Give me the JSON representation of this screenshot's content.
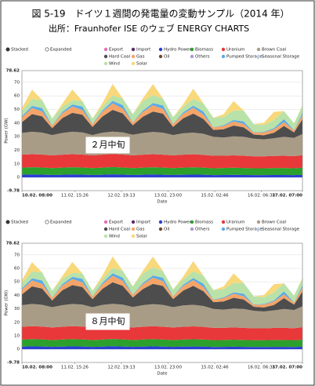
{
  "title": "図 5-19　ドイツ１週間の発電量の変動サンプル（2014 年）",
  "source": "出所：Fraunhofer ISE のウェブ ENERGY CHARTS",
  "chart_data": [
    {
      "type": "area",
      "stacked": true,
      "modes": [
        "Stacked",
        "Expanded"
      ],
      "annotation": "２月中旬",
      "xlabel": "Date",
      "ylabel": "Power (GW)",
      "x": [
        0,
        6,
        12,
        18,
        24,
        30,
        36,
        42,
        48,
        54,
        60,
        66,
        72,
        78,
        84,
        90,
        96,
        102,
        108,
        114,
        120,
        126,
        132,
        138,
        144,
        150,
        156,
        162,
        167
      ],
      "xlim": [
        0,
        167
      ],
      "xticks": [
        {
          "value": 0,
          "label": "10.02. 08:00"
        },
        {
          "value": 31.43,
          "label": "11.02. 15:26"
        },
        {
          "value": 59.22,
          "label": "12.02. 19:13"
        },
        {
          "value": 87,
          "label": "13.02. 23:00"
        },
        {
          "value": 114.77,
          "label": "15.02. 02:46"
        },
        {
          "value": 142.55,
          "label": "16.02. 06:33"
        },
        {
          "value": 167,
          "label": "17.02. 07:00"
        }
      ],
      "ylim": [
        -9.78,
        78.62
      ],
      "yticks": [
        -9.78,
        0,
        10,
        20,
        30,
        40,
        50,
        60,
        70,
        78.62
      ],
      "series": [
        {
          "name": "Export",
          "color": "#e36fb4",
          "values": [
            0,
            0,
            0,
            0,
            0,
            0,
            0,
            0,
            0,
            0,
            0,
            0,
            0,
            0,
            0,
            0,
            0,
            0,
            0,
            0,
            0,
            0,
            0,
            0,
            0,
            0,
            0,
            0,
            0
          ]
        },
        {
          "name": "Import",
          "color": "#5a2a6a",
          "values": [
            0,
            0,
            0,
            0,
            0,
            0,
            0,
            0,
            0,
            0,
            0,
            0,
            0,
            0,
            0,
            0,
            0,
            0,
            0,
            0,
            0,
            0,
            0,
            0,
            0,
            0,
            0,
            0,
            0
          ]
        },
        {
          "name": "Hydro Power",
          "color": "#2a3fd0",
          "values": [
            2,
            2.2,
            2.1,
            1.8,
            2,
            2.2,
            2.1,
            1.8,
            2,
            2.3,
            2.1,
            1.8,
            2,
            2.2,
            2,
            1.8,
            2,
            2.1,
            2,
            1.7,
            1.8,
            1.9,
            1.8,
            1.7,
            1.7,
            1.8,
            1.8,
            1.7,
            1.9
          ]
        },
        {
          "name": "Biomass",
          "color": "#2ca02c",
          "values": [
            5.2,
            5.3,
            5.2,
            5,
            5.2,
            5.3,
            5.2,
            5,
            5.2,
            5.3,
            5.2,
            5,
            5.2,
            5.3,
            5.2,
            5,
            5.2,
            5.3,
            5.2,
            5,
            5.1,
            5.2,
            5.1,
            5,
            5,
            5.1,
            5.1,
            5,
            5.2
          ]
        },
        {
          "name": "Uranium",
          "color": "#e8383a",
          "values": [
            9.5,
            9.6,
            9.5,
            9.4,
            9.5,
            9.6,
            9.5,
            9.4,
            9.5,
            9.6,
            9.5,
            9.4,
            9.5,
            9.6,
            9.5,
            9.4,
            9.5,
            9.6,
            9.4,
            9.2,
            9,
            9.1,
            9,
            8.8,
            8.8,
            8.9,
            9,
            8.9,
            9.3
          ]
        },
        {
          "name": "Brown Coal",
          "color": "#a99c86",
          "values": [
            16,
            16.5,
            16.2,
            15,
            16,
            16.5,
            16.3,
            15,
            16.2,
            16.5,
            16.3,
            15.2,
            16,
            16.4,
            16.2,
            15,
            15.8,
            16,
            15.5,
            14,
            13.5,
            14,
            14,
            13,
            12.5,
            13,
            14,
            13.5,
            15.5
          ]
        },
        {
          "name": "Hard Coal",
          "color": "#4d4d4d",
          "values": [
            8,
            13,
            12,
            5,
            11,
            14,
            13,
            6,
            12,
            16,
            14,
            7,
            12,
            15,
            14,
            6,
            11,
            14,
            11,
            5,
            6,
            8,
            7,
            3,
            3,
            4,
            8,
            4,
            11
          ]
        },
        {
          "name": "Gas",
          "color": "#f5a468",
          "values": [
            3.5,
            4.5,
            3.5,
            2,
            3.5,
            4.5,
            3.5,
            2,
            3.5,
            4.8,
            3.6,
            2,
            3.5,
            4.6,
            3.5,
            2,
            3.4,
            4.3,
            3.2,
            1.8,
            2.5,
            3,
            2.5,
            1.5,
            2.2,
            2.6,
            2.8,
            1.5,
            3.2
          ]
        },
        {
          "name": "Oil",
          "color": "#6b4a2a",
          "values": [
            0,
            0,
            0,
            0,
            0,
            0,
            0,
            0,
            0,
            0,
            0,
            0,
            0,
            0,
            0,
            0,
            0,
            0,
            0,
            0,
            0,
            0,
            0,
            0,
            0,
            0,
            0,
            0,
            0
          ]
        },
        {
          "name": "Others",
          "color": "#b094d4",
          "values": [
            0,
            0,
            0,
            0,
            0,
            0,
            0,
            0,
            0,
            0,
            0,
            0,
            0,
            0,
            0,
            0,
            0,
            0,
            0,
            0,
            0,
            0,
            0,
            0,
            0,
            0,
            0,
            0,
            0
          ]
        },
        {
          "name": "Pumped Storage",
          "color": "#5aaae8",
          "values": [
            1,
            1.5,
            2.5,
            0.2,
            1,
            1.6,
            2.6,
            0.2,
            1,
            1.8,
            2.5,
            0.2,
            1,
            1.6,
            2.6,
            0.2,
            1,
            1.5,
            2.3,
            0.2,
            0.6,
            1,
            1.8,
            0.2,
            0.4,
            0.8,
            2.2,
            0.2,
            1.5
          ]
        },
        {
          "name": "Seasonal Storage",
          "color": "#b8d0f0",
          "values": [
            0,
            0,
            0,
            0,
            0,
            0,
            0,
            0,
            0,
            0,
            0,
            0,
            0,
            0,
            0,
            0,
            0,
            0,
            0,
            0,
            0,
            0,
            0,
            0,
            0,
            0,
            0,
            0,
            0
          ]
        },
        {
          "name": "Wind",
          "color": "#b9e2a9",
          "values": [
            4,
            5,
            6,
            5,
            4,
            3,
            4,
            4,
            3,
            4,
            5,
            6,
            7,
            6,
            5,
            5,
            4,
            5,
            6,
            7,
            6,
            7,
            8,
            6,
            5,
            6,
            6,
            5,
            5
          ]
        },
        {
          "name": "Solar",
          "color": "#f8d87a",
          "values": [
            2,
            7,
            0,
            0,
            2,
            8,
            0,
            0,
            2.5,
            8.5,
            0,
            0,
            2,
            8,
            0,
            0,
            2,
            7.5,
            0,
            0,
            2,
            7,
            0,
            0,
            1.5,
            6,
            0,
            0,
            0.5
          ]
        }
      ]
    },
    {
      "type": "area",
      "stacked": true,
      "modes": [
        "Stacked",
        "Expanded"
      ],
      "annotation": "８月中旬",
      "xlabel": "Date",
      "ylabel": "Power (GW)",
      "x": [
        0,
        6,
        12,
        18,
        24,
        30,
        36,
        42,
        48,
        54,
        60,
        66,
        72,
        78,
        84,
        90,
        96,
        102,
        108,
        114,
        120,
        126,
        132,
        138,
        144,
        150,
        156,
        162,
        167
      ],
      "xlim": [
        0,
        167
      ],
      "xticks": [
        {
          "value": 0,
          "label": "10.02. 08:00"
        },
        {
          "value": 31.43,
          "label": "11.02. 15:26"
        },
        {
          "value": 59.22,
          "label": "12.02. 19:13"
        },
        {
          "value": 87,
          "label": "13.02. 23:00"
        },
        {
          "value": 114.77,
          "label": "15.02. 02:46"
        },
        {
          "value": 142.55,
          "label": "16.02. 06:33"
        },
        {
          "value": 167,
          "label": "17.02. 07:00"
        }
      ],
      "ylim": [
        -9.78,
        78.62
      ],
      "yticks": [
        -9.78,
        0,
        10,
        20,
        30,
        40,
        50,
        60,
        70,
        78.62
      ],
      "series": [
        {
          "name": "Export",
          "color": "#e36fb4",
          "values": [
            0,
            0,
            0,
            0,
            0,
            0,
            0,
            0,
            0,
            0,
            0,
            0,
            0,
            0,
            0,
            0,
            0,
            0,
            0,
            0,
            0,
            0,
            0,
            0,
            0,
            0,
            0,
            0,
            0
          ]
        },
        {
          "name": "Import",
          "color": "#5a2a6a",
          "values": [
            0,
            0,
            0,
            0,
            0,
            0,
            0,
            0,
            0,
            0,
            0,
            0,
            0,
            0,
            0,
            0,
            0,
            0,
            0,
            0,
            0,
            0,
            0,
            0,
            0,
            0,
            0,
            0,
            0
          ]
        },
        {
          "name": "Hydro Power",
          "color": "#2a3fd0",
          "values": [
            2,
            2.2,
            2.1,
            1.8,
            2,
            2.2,
            2.1,
            1.8,
            2,
            2.3,
            2.1,
            1.8,
            2,
            2.2,
            2,
            1.8,
            2,
            2.1,
            2,
            1.7,
            1.8,
            1.9,
            1.8,
            1.7,
            1.7,
            1.8,
            1.8,
            1.7,
            1.9
          ]
        },
        {
          "name": "Biomass",
          "color": "#2ca02c",
          "values": [
            5.2,
            5.3,
            5.2,
            5,
            5.2,
            5.3,
            5.2,
            5,
            5.2,
            5.3,
            5.2,
            5,
            5.2,
            5.3,
            5.2,
            5,
            5.2,
            5.3,
            5.2,
            5,
            5.1,
            5.2,
            5.1,
            5,
            5,
            5.1,
            5.1,
            5,
            5.2
          ]
        },
        {
          "name": "Uranium",
          "color": "#e8383a",
          "values": [
            9.5,
            9.6,
            9.5,
            9.4,
            9.5,
            9.6,
            9.5,
            9.4,
            9.5,
            9.6,
            9.5,
            9.4,
            9.5,
            9.6,
            9.5,
            9.4,
            9.5,
            9.6,
            9.4,
            9.2,
            9,
            9.1,
            9,
            8.8,
            8.8,
            8.9,
            9,
            8.9,
            9.3
          ]
        },
        {
          "name": "Brown Coal",
          "color": "#a99c86",
          "values": [
            16,
            16.5,
            16.2,
            15,
            16,
            16.5,
            16.3,
            15,
            16.2,
            16.5,
            16.3,
            15.2,
            16,
            16.4,
            16.2,
            15,
            15.8,
            16,
            15.5,
            14,
            13.5,
            14,
            14,
            13,
            12.5,
            13,
            14,
            13.5,
            15.5
          ]
        },
        {
          "name": "Hard Coal",
          "color": "#4d4d4d",
          "values": [
            8,
            13,
            12,
            5,
            11,
            14,
            13,
            6,
            12,
            16,
            14,
            7,
            12,
            15,
            14,
            6,
            11,
            14,
            11,
            5,
            6,
            8,
            7,
            3,
            3,
            4,
            8,
            4,
            11
          ]
        },
        {
          "name": "Gas",
          "color": "#f5a468",
          "values": [
            3.5,
            4.5,
            3.5,
            2,
            3.5,
            4.5,
            3.5,
            2,
            3.5,
            4.8,
            3.6,
            2,
            3.5,
            4.6,
            3.5,
            2,
            3.4,
            4.3,
            3.2,
            1.8,
            2.5,
            3,
            2.5,
            1.5,
            2.2,
            2.6,
            2.8,
            1.5,
            3.2
          ]
        },
        {
          "name": "Oil",
          "color": "#6b4a2a",
          "values": [
            0,
            0,
            0,
            0,
            0,
            0,
            0,
            0,
            0,
            0,
            0,
            0,
            0,
            0,
            0,
            0,
            0,
            0,
            0,
            0,
            0,
            0,
            0,
            0,
            0,
            0,
            0,
            0,
            0
          ]
        },
        {
          "name": "Others",
          "color": "#b094d4",
          "values": [
            0,
            0,
            0,
            0,
            0,
            0,
            0,
            0,
            0,
            0,
            0,
            0,
            0,
            0,
            0,
            0,
            0,
            0,
            0,
            0,
            0,
            0,
            0,
            0,
            0,
            0,
            0,
            0,
            0
          ]
        },
        {
          "name": "Pumped Storage",
          "color": "#5aaae8",
          "values": [
            1,
            1.5,
            2.5,
            0.2,
            1,
            1.6,
            2.6,
            0.2,
            1,
            1.8,
            2.5,
            0.2,
            1,
            1.6,
            2.6,
            0.2,
            1,
            1.5,
            2.3,
            0.2,
            0.6,
            1,
            1.8,
            0.2,
            0.4,
            0.8,
            2.2,
            0.2,
            1.5
          ]
        },
        {
          "name": "Seasonal Storage",
          "color": "#b8d0f0",
          "values": [
            0,
            0,
            0,
            0,
            0,
            0,
            0,
            0,
            0,
            0,
            0,
            0,
            0,
            0,
            0,
            0,
            0,
            0,
            0,
            0,
            0,
            0,
            0,
            0,
            0,
            0,
            0,
            0,
            0
          ]
        },
        {
          "name": "Wind",
          "color": "#b9e2a9",
          "values": [
            4,
            5,
            6,
            5,
            4,
            3,
            4,
            4,
            3,
            4,
            5,
            6,
            7,
            6,
            5,
            5,
            4,
            5,
            6,
            7,
            6,
            7,
            8,
            6,
            5,
            6,
            6,
            5,
            5
          ]
        },
        {
          "name": "Solar",
          "color": "#f8d87a",
          "values": [
            2,
            7,
            0,
            0,
            2,
            8,
            0,
            0,
            2.5,
            8.5,
            0,
            0,
            2,
            8,
            0,
            0,
            2,
            7.5,
            0,
            0,
            2,
            7,
            0,
            0,
            1.5,
            6,
            0,
            0,
            0.5
          ]
        }
      ]
    }
  ]
}
